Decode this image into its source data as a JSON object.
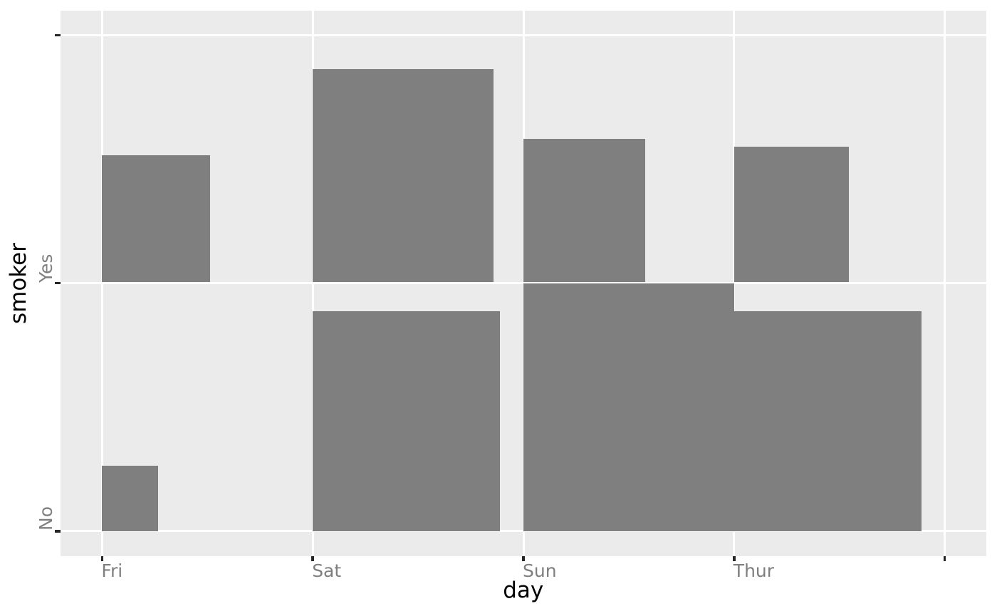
{
  "chart_data": {
    "type": "bar",
    "variant": "mosaic-style area plot: one square tile per (day, smoker) cell, tile area proportional to count, anchored bottom-left on the category grid intersection",
    "title": "",
    "xlabel": "day",
    "ylabel": "smoker",
    "x_categories": [
      "Fri",
      "Sat",
      "Sun",
      "Thur"
    ],
    "y_categories": [
      "No",
      "Yes"
    ],
    "series": [
      {
        "name": "No",
        "values": [
          4,
          45,
          57,
          45
        ]
      },
      {
        "name": "Yes",
        "values": [
          15,
          42,
          19,
          17
        ]
      }
    ],
    "max_value": 57,
    "encoding": "tile side = sqrt(count / 57) grid cells; largest tile (Sun, No) spans exactly one grid cell",
    "x_tick_labels": [
      "Fri",
      "Sat",
      "Sun",
      "Thur",
      ""
    ],
    "y_tick_labels": [
      "No",
      "Yes",
      ""
    ],
    "grid": "white major gridlines on gray panel, drawn under the tiles",
    "legend_position": "none"
  },
  "colors": {
    "figure_background": "#FFFFFF",
    "panel_background": "#EBEBEB",
    "gridline": "#FFFFFF",
    "tile": "#7F7F7F",
    "tick_mark": "#262626",
    "tick_label": "#7F7F7F",
    "axis_title": "#000000"
  }
}
